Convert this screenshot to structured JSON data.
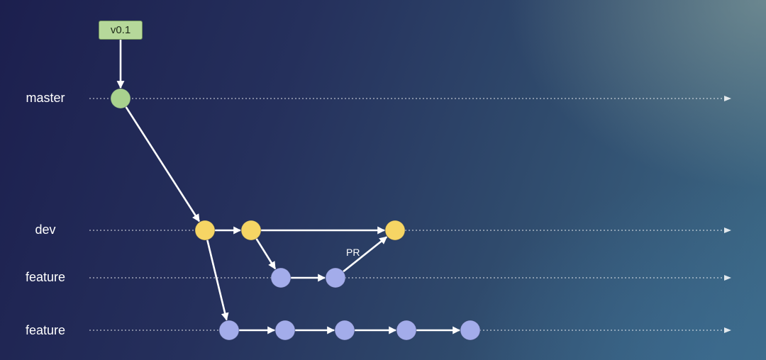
{
  "branches": [
    {
      "id": "master",
      "label": "master"
    },
    {
      "id": "dev",
      "label": "dev"
    },
    {
      "id": "feature-1",
      "label": "feature"
    },
    {
      "id": "feature-2",
      "label": "feature"
    }
  ],
  "tag": {
    "label": "v0.1"
  },
  "annotation": {
    "pr": "PR"
  },
  "colors": {
    "master_commit": "#a9d18e",
    "dev_commit": "#f6d564",
    "feature_commit": "#a3acea",
    "arrow": "#ffffff",
    "tag_fill": "#b6d89a",
    "background": "#25305c"
  },
  "commits": [
    {
      "id": "m1",
      "branch": "master"
    },
    {
      "id": "d1",
      "branch": "dev"
    },
    {
      "id": "d2",
      "branch": "dev"
    },
    {
      "id": "d3",
      "branch": "dev"
    },
    {
      "id": "f1a",
      "branch": "feature-1"
    },
    {
      "id": "f1b",
      "branch": "feature-1"
    },
    {
      "id": "f2a",
      "branch": "feature-2"
    },
    {
      "id": "f2b",
      "branch": "feature-2"
    },
    {
      "id": "f2c",
      "branch": "feature-2"
    },
    {
      "id": "f2d",
      "branch": "feature-2"
    },
    {
      "id": "f2e",
      "branch": "feature-2"
    }
  ],
  "edges": [
    {
      "from": "v0.1",
      "to": "m1"
    },
    {
      "from": "m1",
      "to": "d1"
    },
    {
      "from": "d1",
      "to": "d2"
    },
    {
      "from": "d2",
      "to": "d3"
    },
    {
      "from": "d2",
      "to": "f1a"
    },
    {
      "from": "f1a",
      "to": "f1b"
    },
    {
      "from": "f1b",
      "to": "d3",
      "label": "PR"
    },
    {
      "from": "d1",
      "to": "f2a"
    },
    {
      "from": "f2a",
      "to": "f2b"
    },
    {
      "from": "f2b",
      "to": "f2c"
    },
    {
      "from": "f2c",
      "to": "f2d"
    },
    {
      "from": "f2d",
      "to": "f2e"
    }
  ]
}
